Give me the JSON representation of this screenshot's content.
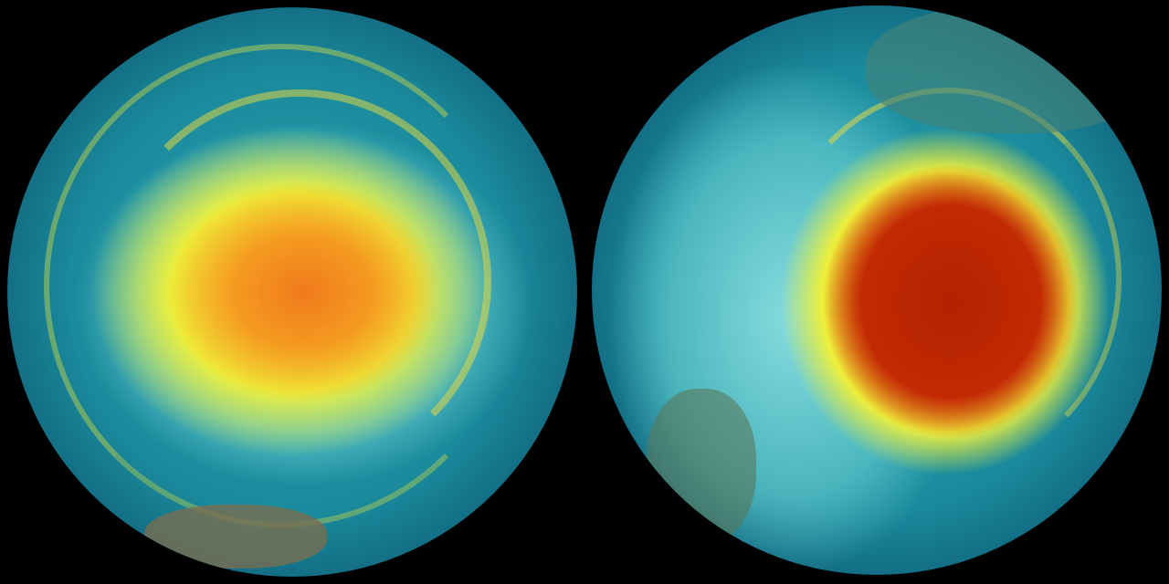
{
  "globes": [
    {
      "id": "left",
      "vortex_colors": [
        "#f07a1c",
        "#f7c52a",
        "#eef03a",
        "#2aa3b0"
      ]
    },
    {
      "id": "right",
      "vortex_colors": [
        "#b32200",
        "#e86a10",
        "#eef03a",
        "#2aa5b2"
      ]
    }
  ],
  "background": "#000000"
}
